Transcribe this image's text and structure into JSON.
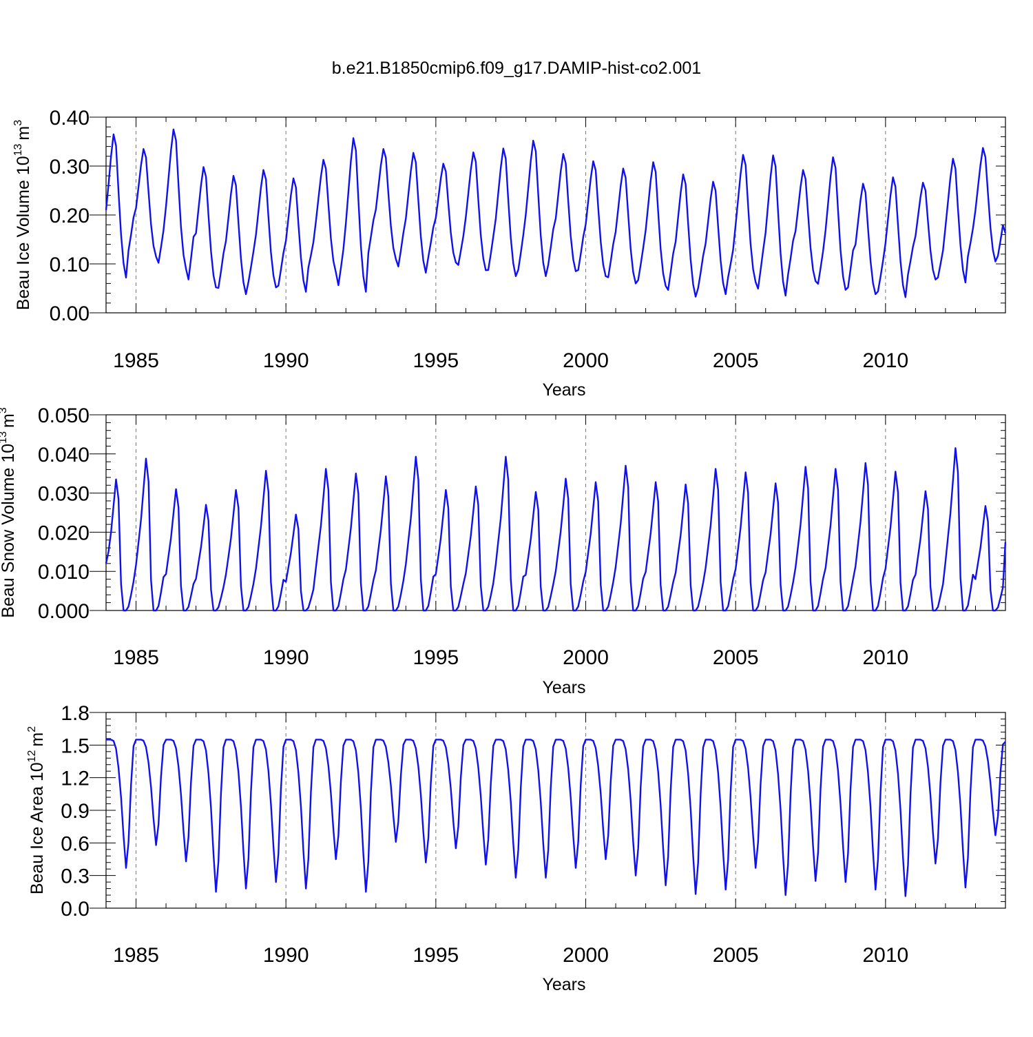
{
  "figure": {
    "title": "b.e21.B1850cmip6.f09_g17.DAMIP-hist-co2.001",
    "line_color": "#1010ee"
  },
  "chart_data": [
    {
      "type": "line",
      "ylabel": "Beau Ice Volume",
      "unit_base": "10",
      "unit_exp": "13",
      "unit_m": "m",
      "unit_mexp": "3",
      "xlabel": "Years",
      "xlim": [
        1984.0,
        2014.0
      ],
      "xticks": [
        1985,
        1990,
        1995,
        2000,
        2005,
        2010
      ],
      "xtick_labels": [
        "1985",
        "1990",
        "1995",
        "2000",
        "2005",
        "2010"
      ],
      "ylim": [
        0.0,
        0.4
      ],
      "yticks": [
        0.0,
        0.1,
        0.2,
        0.3,
        0.4
      ],
      "ytick_labels": [
        "0.00",
        "0.10",
        "0.20",
        "0.30",
        "0.40"
      ],
      "grid": "dashed vertical at x ticks",
      "series": [
        {
          "name": "Beau Ice Volume",
          "start_year": 1984.0,
          "step": 0.08333,
          "annual_max": [
            0.365,
            0.335,
            0.375,
            0.298,
            0.28,
            0.292,
            0.275,
            0.313,
            0.357,
            0.335,
            0.327,
            0.305,
            0.328,
            0.336,
            0.352,
            0.325,
            0.31,
            0.295,
            0.308,
            0.283,
            0.268,
            0.323,
            0.322,
            0.292,
            0.318,
            0.264,
            0.277,
            0.266,
            0.315,
            0.337
          ],
          "annual_min": [
            0.072,
            0.115,
            0.09,
            0.052,
            0.038,
            0.052,
            0.043,
            0.083,
            0.043,
            0.11,
            0.082,
            0.103,
            0.087,
            0.075,
            0.075,
            0.085,
            0.075,
            0.06,
            0.055,
            0.033,
            0.038,
            0.063,
            0.035,
            0.065,
            0.047,
            0.038,
            0.032,
            0.068,
            0.062,
            0.105
          ],
          "start_value": 0.21,
          "end_value": 0.163
        }
      ]
    },
    {
      "type": "line",
      "ylabel": "Beau Snow Volume",
      "unit_base": "10",
      "unit_exp": "13",
      "unit_m": "m",
      "unit_mexp": "3",
      "xlabel": "Years",
      "xlim": [
        1984.0,
        2014.0
      ],
      "xticks": [
        1985,
        1990,
        1995,
        2000,
        2005,
        2010
      ],
      "xtick_labels": [
        "1985",
        "1990",
        "1995",
        "2000",
        "2005",
        "2010"
      ],
      "ylim": [
        0.0,
        0.05
      ],
      "yticks": [
        0.0,
        0.01,
        0.02,
        0.03,
        0.04,
        0.05
      ],
      "ytick_labels": [
        "0.000",
        "0.010",
        "0.020",
        "0.030",
        "0.040",
        "0.050"
      ],
      "grid": "dashed vertical at x ticks",
      "series": [
        {
          "name": "Beau Snow Volume",
          "start_year": 1984.0,
          "step": 0.08333,
          "annual_max": [
            0.0335,
            0.0388,
            0.031,
            0.027,
            0.0308,
            0.0357,
            0.0245,
            0.0362,
            0.035,
            0.0343,
            0.0393,
            0.0308,
            0.0317,
            0.0393,
            0.0303,
            0.0337,
            0.0328,
            0.037,
            0.0328,
            0.0322,
            0.0362,
            0.0353,
            0.0325,
            0.0367,
            0.0362,
            0.0377,
            0.0355,
            0.0305,
            0.0415,
            0.0267
          ],
          "annual_min": [
            0.0,
            0.0,
            0.0,
            0.0,
            0.0,
            0.0,
            0.0,
            0.0,
            0.0,
            0.0,
            0.0,
            0.0,
            0.0,
            0.0,
            0.0,
            0.0,
            0.0,
            0.0,
            0.0,
            0.0,
            0.0,
            0.0,
            0.0,
            0.0,
            0.0,
            0.0,
            0.0,
            0.0,
            0.0,
            0.0
          ],
          "start_value": 0.012,
          "end_value": 0.0175
        }
      ]
    },
    {
      "type": "line",
      "ylabel": "Beau Ice Area",
      "unit_base": "10",
      "unit_exp": "12",
      "unit_m": "m",
      "unit_mexp": "2",
      "xlabel": "Years",
      "xlim": [
        1984.0,
        2014.0
      ],
      "xticks": [
        1985,
        1990,
        1995,
        2000,
        2005,
        2010
      ],
      "xtick_labels": [
        "1985",
        "1990",
        "1995",
        "2000",
        "2005",
        "2010"
      ],
      "ylim": [
        0.0,
        1.8
      ],
      "yticks": [
        0.0,
        0.3,
        0.6,
        0.9,
        1.2,
        1.5,
        1.8
      ],
      "ytick_labels": [
        "0.0",
        "0.3",
        "0.6",
        "0.9",
        "1.2",
        "1.5",
        "1.8"
      ],
      "grid": "dashed vertical at x ticks",
      "series": [
        {
          "name": "Beau Ice Area",
          "start_year": 1984.0,
          "step": 0.08333,
          "annual_max": [
            1.55,
            1.55,
            1.55,
            1.55,
            1.55,
            1.55,
            1.55,
            1.55,
            1.55,
            1.55,
            1.55,
            1.55,
            1.55,
            1.55,
            1.55,
            1.55,
            1.55,
            1.55,
            1.55,
            1.55,
            1.55,
            1.55,
            1.55,
            1.55,
            1.55,
            1.55,
            1.55,
            1.55,
            1.55,
            1.55
          ],
          "annual_min": [
            0.37,
            0.58,
            0.43,
            0.15,
            0.18,
            0.24,
            0.18,
            0.45,
            0.15,
            0.61,
            0.42,
            0.55,
            0.4,
            0.28,
            0.28,
            0.37,
            0.45,
            0.3,
            0.21,
            0.13,
            0.17,
            0.37,
            0.12,
            0.25,
            0.24,
            0.17,
            0.11,
            0.41,
            0.19,
            0.67
          ],
          "start_value": 1.55,
          "end_value": 1.53
        }
      ]
    }
  ]
}
